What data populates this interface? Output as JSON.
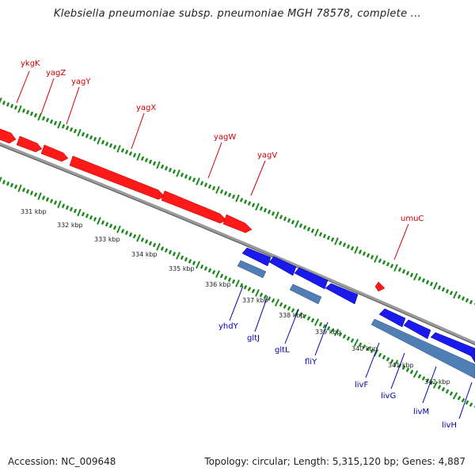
{
  "title": "Klebsiella pneumoniae subsp. pneumoniae MGH 78578, complete ...",
  "footer": {
    "accession": "Accession: NC_009648",
    "topology": "Topology: circular; Length: 5,315,120 bp; Genes: 4,887"
  },
  "colors": {
    "forward_gene": "#ff0000",
    "reverse_gene": "#1010e0",
    "rna_feature": "#4f7fb5",
    "backbone": "#8a8a8a",
    "ticks": "#1a8a1a",
    "forward_label": "#d00000",
    "reverse_label": "#0000b0"
  },
  "kbp_labels": [
    "331 kbp",
    "332 kbp",
    "333 kbp",
    "334 kbp",
    "335 kbp",
    "336 kbp",
    "337 kbp",
    "338 kbp",
    "339 kbp",
    "340 kbp",
    "341 kbp",
    "342 kbp"
  ],
  "forward_genes": [
    "ykgK",
    "yagZ",
    "yagY",
    "yagX",
    "yagW",
    "yagV",
    "umuC"
  ],
  "reverse_genes": [
    "yhdY",
    "gltJ",
    "gltL",
    "fliY",
    "livF",
    "livG",
    "livM",
    "livH"
  ]
}
